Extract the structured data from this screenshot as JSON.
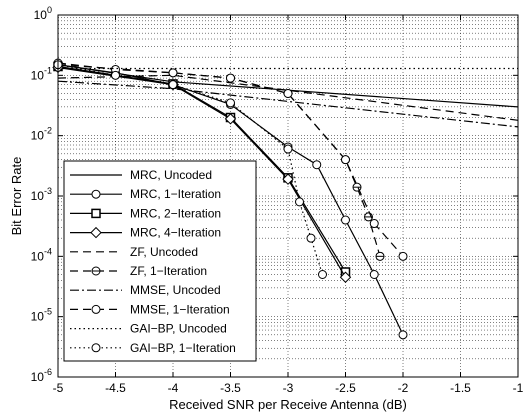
{
  "chart_data": {
    "type": "line",
    "title": "",
    "xlabel": "Received SNR per Receive Antenna (dB)",
    "ylabel": "Bit Error Rate",
    "xlim": [
      -5,
      -1
    ],
    "ylim_exp": [
      -6,
      0
    ],
    "yscale": "log",
    "grid": "dotted",
    "legend_position": "bottom-left",
    "x_ticks": [
      "-5",
      "-4.5",
      "-4",
      "-3.5",
      "-3",
      "-2.5",
      "-2",
      "-1.5",
      "-1"
    ],
    "y_tick_base": "10",
    "y_tick_exponents": [
      "-6",
      "-5",
      "-4",
      "-3",
      "-2",
      "-1",
      "0"
    ],
    "series": [
      {
        "name": "MRC, Uncoded",
        "line": "solid",
        "marker": "none",
        "x": [
          -5,
          -4,
          -1
        ],
        "y": [
          0.15,
          0.078,
          0.03
        ]
      },
      {
        "name": "MRC, 1−Iteration",
        "line": "solid",
        "marker": "circle",
        "x": [
          -5,
          -4.5,
          -4,
          -3.5,
          -3,
          -2.75,
          -2.5,
          -2.25,
          -2
        ],
        "y": [
          0.15,
          0.11,
          0.07,
          0.033,
          0.0065,
          0.0033,
          0.0004,
          5e-05,
          5e-06
        ]
      },
      {
        "name": "MRC, 2−Iteration",
        "line": "solid",
        "marker": "square",
        "x": [
          -5,
          -4,
          -3.5,
          -3,
          -2.5
        ],
        "y": [
          0.14,
          0.072,
          0.02,
          0.002,
          5.5e-05
        ]
      },
      {
        "name": "MRC, 4−Iteration",
        "line": "solid",
        "marker": "diamond",
        "x": [
          -5,
          -4,
          -3.5,
          -3,
          -2.5
        ],
        "y": [
          0.135,
          0.07,
          0.019,
          0.0019,
          4.5e-05
        ]
      },
      {
        "name": "ZF, Uncoded",
        "line": "dashed",
        "marker": "none",
        "x": [
          -5,
          -4,
          -1
        ],
        "y": [
          0.09,
          0.1,
          0.018
        ]
      },
      {
        "name": "ZF, 1−Iteration",
        "line": "dashed",
        "marker": "circle-bar",
        "x": [
          -5,
          -4,
          -3.5,
          -3,
          -2.5,
          -2.4,
          -2.3,
          -2.2
        ],
        "y": [
          0.15,
          0.11,
          0.09,
          0.05,
          0.004,
          0.0014,
          0.00045,
          0.0001
        ]
      },
      {
        "name": "MMSE, Uncoded",
        "line": "dashdot",
        "marker": "none",
        "x": [
          -5,
          -4,
          -1
        ],
        "y": [
          0.08,
          0.06,
          0.014
        ]
      },
      {
        "name": "MMSE, 1−Iteration",
        "line": "dashed",
        "marker": "circle",
        "x": [
          -5,
          -4.5,
          -4,
          -3.5,
          -3,
          -2.5,
          -2.25,
          -2
        ],
        "y": [
          0.16,
          0.125,
          0.11,
          0.09,
          0.05,
          0.004,
          0.00035,
          0.0001
        ]
      },
      {
        "name": "GAI−BP, Uncoded",
        "line": "dotted",
        "marker": "none",
        "x": [
          -5,
          -1
        ],
        "y": [
          0.13,
          0.13
        ]
      },
      {
        "name": "GAI−BP, 1−Iteration",
        "line": "dotted",
        "marker": "circle",
        "x": [
          -5,
          -4.5,
          -4,
          -3.5,
          -3,
          -2.9,
          -2.8,
          -2.7
        ],
        "y": [
          0.15,
          0.1,
          0.07,
          0.035,
          0.006,
          0.0008,
          0.0002,
          5e-05
        ]
      }
    ]
  }
}
